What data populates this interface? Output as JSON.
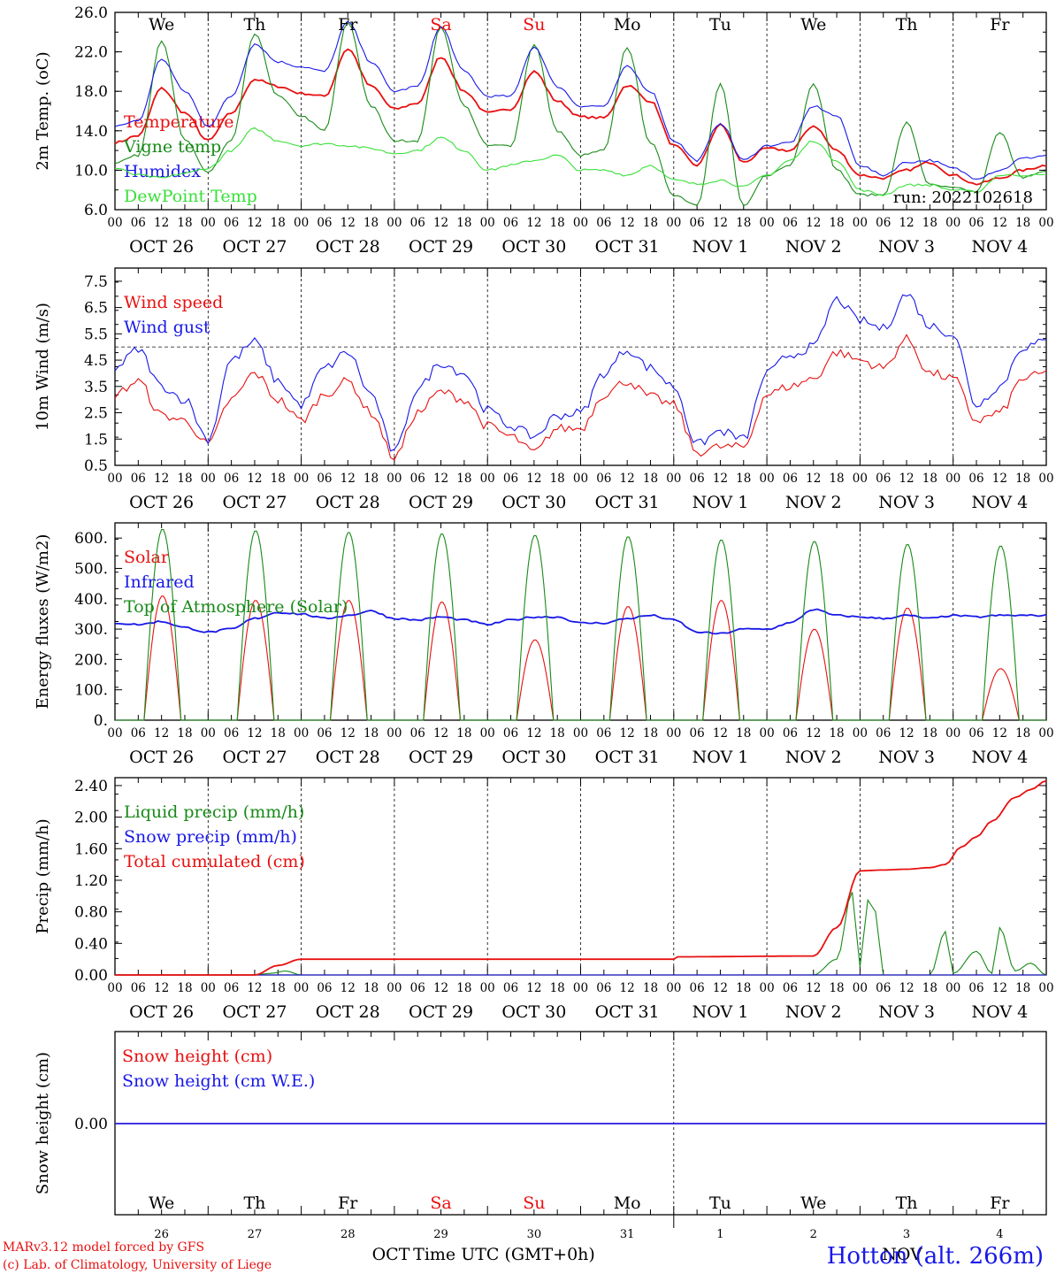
{
  "day_names": [
    "We",
    "Th",
    "Fr",
    "Sa",
    "Su",
    "Mo",
    "Tu",
    "We",
    "Th",
    "Fr"
  ],
  "weekend_color": "#e81010",
  "hour_ticks": [
    "00",
    "06",
    "12",
    "18"
  ],
  "hour_end": "00",
  "date_labels": [
    "OCT 26",
    "OCT 27",
    "OCT 28",
    "OCT 29",
    "OCT 30",
    "OCT 31",
    "NOV  1",
    "NOV  2",
    "NOV  3",
    "NOV  4"
  ],
  "bottom_day_numbers": [
    "26",
    "27",
    "28",
    "29",
    "30",
    "31",
    "1",
    "2",
    "3",
    "4"
  ],
  "bottom_month_left": "OCT",
  "bottom_month_right": "NOV",
  "xlabel": "Time UTC (GMT+0h)",
  "footer_line1": "MARv3.12 model forced by GFS",
  "footer_line2": "(c) Lab. of Climatology, University of Liege",
  "station": "Hotton (alt. 266m)",
  "colors": {
    "red": "#e81010",
    "green": "#188a18",
    "blue": "#1818e8",
    "lightgreen": "#38e038",
    "purple": "#7a2aa8"
  },
  "chart_data": [
    {
      "type": "line",
      "ylabel": "2m Temp. (oC)",
      "ylim": [
        6.0,
        26.0
      ],
      "yticks": [
        "26.0",
        "22.0",
        "18.0",
        "14.0",
        "10.0",
        "6.0"
      ],
      "run_label": "run: 2022102618",
      "x_unit": "hours since Oct 26 00 UTC",
      "series": [
        {
          "name": "Temperature",
          "color": "#e81010",
          "x": [
            0,
            6,
            12,
            18,
            24,
            30,
            36,
            42,
            48,
            54,
            60,
            66,
            72,
            78,
            84,
            90,
            96,
            102,
            108,
            114,
            120,
            126,
            132,
            138,
            144,
            150,
            156,
            162,
            168,
            174,
            180,
            186,
            192,
            198,
            204,
            210,
            216,
            222,
            228,
            234,
            240
          ],
          "y": [
            12.8,
            13.5,
            18.3,
            15.8,
            13.0,
            15.8,
            19.2,
            18.5,
            17.8,
            17.5,
            22.3,
            18.5,
            16.2,
            16.8,
            21.5,
            18.0,
            15.8,
            16.2,
            20.0,
            17.0,
            15.4,
            15.3,
            18.6,
            17.0,
            12.5,
            10.5,
            14.6,
            10.8,
            12.2,
            12.0,
            14.5,
            12.0,
            9.5,
            9.2,
            10.0,
            10.8,
            9.5,
            8.6,
            9.2,
            10.0,
            10.5
          ]
        },
        {
          "name": "Vigne temp",
          "color": "#188a18",
          "x": [
            0,
            6,
            12,
            18,
            24,
            30,
            36,
            42,
            48,
            54,
            60,
            66,
            72,
            78,
            84,
            90,
            96,
            102,
            108,
            114,
            120,
            126,
            132,
            138,
            144,
            150,
            156,
            162,
            168,
            174,
            180,
            186,
            192,
            198,
            204,
            210,
            216,
            222,
            228,
            234,
            240
          ],
          "y": [
            10.8,
            11.5,
            23.2,
            13.0,
            9.8,
            13.0,
            23.8,
            17.5,
            15.5,
            14.0,
            25.0,
            16.5,
            13.0,
            13.0,
            24.5,
            16.5,
            12.5,
            12.5,
            22.8,
            14.0,
            11.5,
            12.0,
            22.5,
            12.8,
            7.5,
            6.5,
            18.7,
            6.3,
            9.5,
            10.5,
            18.8,
            10.0,
            7.5,
            7.5,
            14.8,
            8.5,
            8.2,
            7.8,
            13.8,
            9.3,
            9.8
          ]
        },
        {
          "name": "Humidex",
          "color": "#1818e8",
          "x": [
            0,
            6,
            12,
            18,
            24,
            30,
            36,
            42,
            48,
            54,
            60,
            66,
            72,
            78,
            84,
            90,
            96,
            102,
            108,
            114,
            120,
            126,
            132,
            138,
            144,
            150,
            156,
            162,
            168,
            174,
            180,
            186,
            192,
            198,
            204,
            210,
            216,
            222,
            228,
            234,
            240
          ],
          "y": [
            14.5,
            15.0,
            21.3,
            18.0,
            14.5,
            17.5,
            22.8,
            21.0,
            20.5,
            20.0,
            25.0,
            21.0,
            18.0,
            18.5,
            24.5,
            20.0,
            17.5,
            17.5,
            22.5,
            18.5,
            16.5,
            16.5,
            20.5,
            18.0,
            13.0,
            11.0,
            14.8,
            11.0,
            12.5,
            12.8,
            16.5,
            15.5,
            10.5,
            9.5,
            10.8,
            11.0,
            10.2,
            9.2,
            10.0,
            11.2,
            11.5
          ]
        },
        {
          "name": "DewPoint Temp",
          "color": "#38e038",
          "x": [
            0,
            6,
            12,
            18,
            24,
            30,
            36,
            42,
            48,
            54,
            60,
            66,
            72,
            78,
            84,
            90,
            96,
            102,
            108,
            114,
            120,
            126,
            132,
            138,
            144,
            150,
            156,
            162,
            168,
            174,
            180,
            186,
            192,
            198,
            204,
            210,
            216,
            222,
            228,
            234,
            240
          ],
          "y": [
            10.2,
            9.5,
            9.2,
            9.7,
            10.2,
            12.0,
            14.2,
            13.0,
            12.5,
            12.7,
            12.5,
            12.2,
            11.7,
            12.0,
            13.3,
            12.0,
            10.0,
            10.5,
            11.0,
            11.5,
            10.0,
            10.0,
            9.5,
            10.5,
            9.0,
            8.6,
            9.0,
            8.3,
            9.5,
            11.0,
            13.0,
            11.0,
            8.0,
            7.5,
            8.5,
            8.5,
            8.0,
            7.8,
            9.5,
            9.5,
            9.5
          ]
        }
      ]
    },
    {
      "type": "line",
      "ylabel": "10m Wind (m/s)",
      "ylim": [
        0.5,
        8.0
      ],
      "yticks": [
        "7.5",
        "6.5",
        "5.5",
        "4.5",
        "3.5",
        "2.5",
        "1.5",
        "0.5"
      ],
      "reference_line": 5.0,
      "x_unit": "hours since Oct 26 00 UTC",
      "series": [
        {
          "name": "Wind speed",
          "color": "#e81010",
          "x": [
            0,
            6,
            12,
            18,
            24,
            30,
            36,
            42,
            48,
            54,
            60,
            66,
            72,
            78,
            84,
            90,
            96,
            102,
            108,
            114,
            120,
            126,
            132,
            138,
            144,
            150,
            156,
            162,
            168,
            174,
            180,
            186,
            192,
            198,
            204,
            210,
            216,
            222,
            228,
            234,
            240
          ],
          "y": [
            3.2,
            3.7,
            2.4,
            2.2,
            1.3,
            3.0,
            4.0,
            3.0,
            2.2,
            3.2,
            3.7,
            2.5,
            0.8,
            2.5,
            3.3,
            3.0,
            2.0,
            1.6,
            1.0,
            1.9,
            1.9,
            3.2,
            3.7,
            3.1,
            2.8,
            1.0,
            1.2,
            1.2,
            3.2,
            3.5,
            3.8,
            4.8,
            4.5,
            4.2,
            5.3,
            4.0,
            3.8,
            2.2,
            2.5,
            3.8,
            4.0
          ]
        },
        {
          "name": "Wind gust",
          "color": "#1818e8",
          "x": [
            0,
            6,
            12,
            18,
            24,
            30,
            36,
            42,
            48,
            54,
            60,
            66,
            72,
            78,
            84,
            90,
            96,
            102,
            108,
            114,
            120,
            126,
            132,
            138,
            144,
            150,
            156,
            162,
            168,
            174,
            180,
            186,
            192,
            198,
            204,
            210,
            216,
            222,
            228,
            234,
            240
          ],
          "y": [
            4.2,
            4.9,
            3.5,
            3.0,
            1.5,
            4.5,
            5.2,
            3.7,
            2.8,
            4.2,
            4.8,
            3.2,
            1.0,
            3.4,
            4.4,
            4.0,
            2.6,
            2.0,
            1.6,
            2.4,
            2.5,
            4.0,
            4.9,
            4.2,
            3.5,
            1.3,
            1.8,
            1.5,
            4.0,
            4.7,
            5.0,
            6.8,
            6.0,
            5.7,
            7.0,
            5.8,
            5.5,
            2.8,
            3.5,
            5.0,
            5.2
          ]
        }
      ]
    },
    {
      "type": "line",
      "ylabel": "Energy fluxes (W/m2)",
      "ylim": [
        0,
        650
      ],
      "yticks": [
        "600.",
        "500.",
        "400.",
        "300.",
        "200.",
        "100.",
        "0."
      ],
      "x_unit": "hours since Oct 26 00 UTC",
      "daylight_hours": [
        7.5,
        17.0
      ],
      "series": [
        {
          "name": "Solar",
          "color": "#e81010",
          "daily_peaks": [
            410,
            395,
            395,
            390,
            265,
            375,
            395,
            300,
            370,
            170
          ]
        },
        {
          "name": "Infrared",
          "color": "#1818e8",
          "x": [
            0,
            6,
            12,
            18,
            24,
            30,
            36,
            42,
            48,
            54,
            60,
            66,
            72,
            78,
            84,
            90,
            96,
            102,
            108,
            114,
            120,
            126,
            132,
            138,
            144,
            150,
            156,
            162,
            168,
            174,
            180,
            186,
            192,
            198,
            204,
            210,
            216,
            222,
            228,
            234,
            240
          ],
          "y": [
            320,
            315,
            325,
            305,
            290,
            300,
            335,
            355,
            350,
            335,
            345,
            360,
            335,
            330,
            340,
            330,
            315,
            330,
            340,
            340,
            320,
            320,
            335,
            345,
            330,
            290,
            285,
            300,
            300,
            320,
            365,
            345,
            340,
            335,
            345,
            335,
            345,
            340,
            345,
            345,
            345
          ]
        },
        {
          "name": "Top of Atmosphere (Solar)",
          "color": "#188a18",
          "daily_peaks": [
            630,
            625,
            620,
            615,
            610,
            605,
            595,
            590,
            580,
            575
          ]
        }
      ]
    },
    {
      "type": "line",
      "ylabel": "Precip (mm/h)",
      "ylim": [
        0.0,
        2.5
      ],
      "yticks": [
        "2.40",
        "2.00",
        "1.60",
        "1.20",
        "0.80",
        "0.40",
        "0.00"
      ],
      "x_unit": "hours since Oct 26 00 UTC",
      "series": [
        {
          "name": "Liquid precip (mm/h)",
          "color": "#188a18",
          "x": [
            0,
            36,
            40,
            44,
            48,
            144,
            156,
            180,
            186,
            190,
            192,
            194,
            196,
            198,
            204,
            210,
            214,
            216,
            222,
            226,
            228,
            232,
            236,
            240
          ],
          "y": [
            0,
            0,
            0.02,
            0.05,
            0,
            0,
            0,
            0,
            0.2,
            1.05,
            0.1,
            0.95,
            0.8,
            0,
            0,
            0,
            0.55,
            0.02,
            0.3,
            0.02,
            0.6,
            0.05,
            0.15,
            0
          ]
        },
        {
          "name": "Snow precip (mm/h)",
          "color": "#1818e8",
          "x": [
            0,
            240
          ],
          "y": [
            0,
            0
          ]
        },
        {
          "name": "Total cumulated (cm)",
          "color": "#e81010",
          "x": [
            0,
            36,
            42,
            48,
            144,
            145,
            180,
            186,
            192,
            198,
            204,
            210,
            214,
            218,
            222,
            226,
            232,
            236,
            240
          ],
          "y": [
            0,
            0,
            0.12,
            0.2,
            0.2,
            0.23,
            0.24,
            0.6,
            1.32,
            1.33,
            1.34,
            1.36,
            1.4,
            1.62,
            1.75,
            1.95,
            2.25,
            2.35,
            2.46
          ]
        }
      ]
    },
    {
      "type": "line",
      "ylabel": "Snow height (cm)",
      "yticks": [
        "0.00"
      ],
      "series": [
        {
          "name": "Snow height (cm)",
          "color": "#e81010",
          "x": [
            0,
            240
          ],
          "y": [
            0,
            0
          ]
        },
        {
          "name": "Snow height (cm W.E.)",
          "color": "#1818e8",
          "x": [
            0,
            240
          ],
          "y": [
            0,
            0
          ]
        }
      ]
    }
  ]
}
